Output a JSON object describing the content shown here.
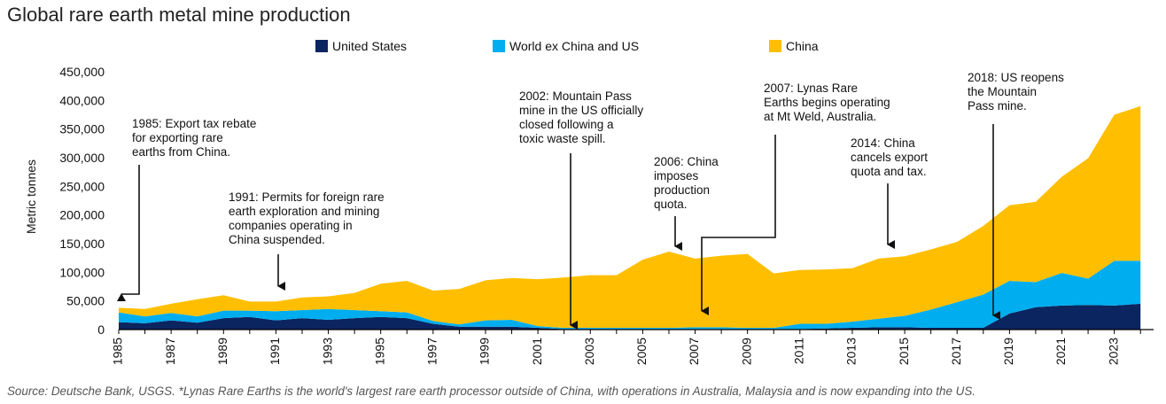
{
  "chart_data": {
    "type": "area",
    "stacked": true,
    "title": "Global rare earth metal mine production",
    "ylabel": "Metric  tonnes",
    "xlabel": "",
    "ylim": [
      0,
      450000
    ],
    "yticks": [
      0,
      50000,
      100000,
      150000,
      200000,
      250000,
      300000,
      350000,
      400000,
      450000
    ],
    "ytick_labels": [
      "0",
      "50,000",
      "100,000",
      "150,000",
      "200,000",
      "250,000",
      "300,000",
      "350,000",
      "400,000",
      "450,000"
    ],
    "xlim": [
      1985,
      2024.5
    ],
    "xtick_labels": [
      "1985",
      "1987",
      "1989",
      "1991",
      "1993",
      "1995",
      "1997",
      "1999",
      "2001",
      "2003",
      "2005",
      "2007",
      "2009",
      "2011",
      "2013",
      "2015",
      "2017",
      "2019",
      "2021",
      "2023"
    ],
    "grid": false,
    "legend_position": "top",
    "x": [
      1985,
      1986,
      1987,
      1988,
      1989,
      1990,
      1991,
      1992,
      1993,
      1994,
      1995,
      1996,
      1997,
      1998,
      1999,
      2000,
      2001,
      2002,
      2003,
      2004,
      2005,
      2006,
      2007,
      2008,
      2009,
      2010,
      2011,
      2012,
      2013,
      2014,
      2015,
      2016,
      2017,
      2018,
      2019,
      2020,
      2021,
      2022,
      2023,
      2024
    ],
    "series": [
      {
        "name": "United States",
        "color": "#0b2560",
        "values": [
          13000,
          11000,
          16000,
          12000,
          20000,
          22000,
          16000,
          20000,
          17000,
          20000,
          22000,
          20000,
          10000,
          5000,
          5000,
          5000,
          3000,
          1000,
          0,
          0,
          0,
          0,
          1000,
          1000,
          0,
          0,
          1000,
          2000,
          3000,
          4000,
          4000,
          3000,
          3000,
          3000,
          28000,
          39000,
          42000,
          43000,
          42000,
          45000
        ]
      },
      {
        "name": "World ex China and US",
        "color": "#00aeef",
        "values": [
          17000,
          12000,
          13000,
          11000,
          13000,
          11000,
          16000,
          14000,
          19000,
          14000,
          10000,
          10000,
          5000,
          4000,
          11000,
          12000,
          3000,
          2000,
          3000,
          3000,
          3000,
          3000,
          3000,
          3000,
          3000,
          3000,
          9000,
          8000,
          11000,
          15000,
          20000,
          32000,
          45000,
          58000,
          57000,
          44000,
          57000,
          46000,
          78000,
          75000
        ]
      },
      {
        "name": "China",
        "color": "#ffbf00",
        "values": [
          8000,
          13000,
          16000,
          30000,
          27000,
          16000,
          17000,
          22000,
          22000,
          30000,
          48000,
          55000,
          53000,
          62000,
          70000,
          73000,
          82000,
          88000,
          92000,
          92000,
          119000,
          133000,
          120000,
          125000,
          129000,
          95000,
          94000,
          95000,
          93000,
          105000,
          104000,
          105000,
          105000,
          120000,
          132000,
          140000,
          168000,
          210000,
          255000,
          270000
        ]
      }
    ],
    "annotations": [
      {
        "lines": [
          "1985: Export tax rebate",
          "for exporting rare",
          "earths from China."
        ],
        "year": 1985
      },
      {
        "lines": [
          "1991: Permits for foreign rare",
          "earth exploration and mining",
          "companies operating in",
          "China suspended."
        ],
        "year": 1991
      },
      {
        "lines": [
          "2002: Mountain Pass",
          "mine in the US officially",
          "closed following a",
          "toxic waste spill."
        ],
        "year": 2002
      },
      {
        "lines": [
          "2006: China",
          "imposes",
          "production",
          "quota."
        ],
        "year": 2006
      },
      {
        "lines": [
          "2007: Lynas Rare",
          "Earths begins operating",
          "at Mt Weld, Australia."
        ],
        "year": 2007
      },
      {
        "lines": [
          "2014: China",
          "cancels export",
          "quota and tax."
        ],
        "year": 2014
      },
      {
        "lines": [
          "2018: US reopens",
          "the Mountain",
          "Pass mine."
        ],
        "year": 2018
      }
    ]
  },
  "source_note": "Source: Deutsche Bank, USGS. *Lynas Rare Earths is the world's largest rare earth processor outside of China, with operations in Australia, Malaysia and is now expanding into the US."
}
